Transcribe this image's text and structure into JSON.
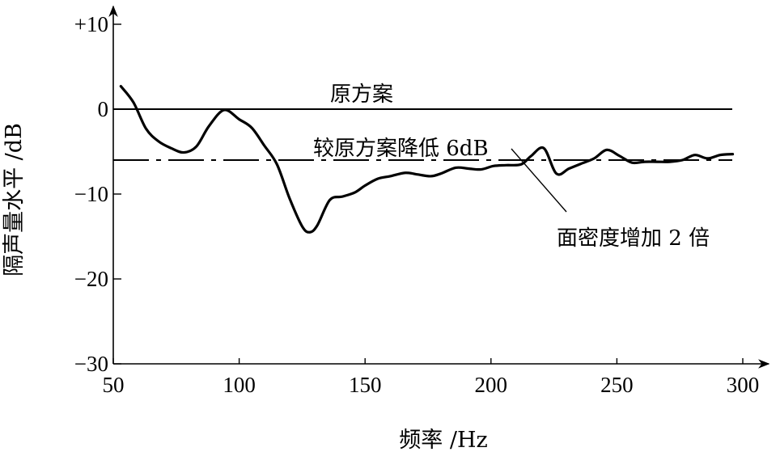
{
  "chart_data": {
    "type": "line",
    "xlabel": "频率 /Hz",
    "ylabel": "隔声量水平 /dB",
    "xlim": [
      50,
      300
    ],
    "ylim": [
      -30,
      10
    ],
    "x_ticks": [
      50,
      100,
      150,
      200,
      250,
      300
    ],
    "x_tick_labels": [
      "50",
      "100",
      "150",
      "200",
      "250",
      "300"
    ],
    "y_ticks": [
      10,
      0,
      -10,
      -20,
      -30
    ],
    "y_tick_labels": [
      "+10",
      "0",
      "−10",
      "−20",
      "−30"
    ],
    "grid": false,
    "legend": "none",
    "series": [
      {
        "name": "原方案",
        "style": "solid",
        "x": [
          50,
          300
        ],
        "values": [
          0,
          0
        ]
      },
      {
        "name": "较原方案降低 6dB",
        "style": "dash-dot",
        "x": [
          50,
          300
        ],
        "values": [
          -6,
          -6
        ]
      },
      {
        "name": "面密度增加 2 倍",
        "style": "solid-thick",
        "x": [
          53,
          58,
          63,
          68,
          73,
          78,
          83,
          88,
          94,
          100,
          105,
          110,
          115,
          120,
          125,
          128,
          131,
          136,
          141,
          146,
          150,
          155,
          160,
          166,
          171,
          176,
          180,
          186,
          191,
          196,
          201,
          206,
          212,
          216,
          221,
          226,
          231,
          236,
          241,
          246,
          251,
          256,
          261,
          266,
          271,
          276,
          281,
          286,
          291,
          296
        ],
        "values": [
          2.7,
          0.8,
          -2.3,
          -3.8,
          -4.6,
          -5.1,
          -4.4,
          -2.0,
          -0.1,
          -1.2,
          -2.2,
          -4.3,
          -6.5,
          -10.5,
          -13.8,
          -14.5,
          -13.7,
          -10.7,
          -10.3,
          -9.8,
          -9.0,
          -8.2,
          -7.9,
          -7.5,
          -7.7,
          -7.9,
          -7.6,
          -6.9,
          -7.0,
          -7.1,
          -6.7,
          -6.6,
          -6.5,
          -5.5,
          -4.6,
          -7.6,
          -7.0,
          -6.4,
          -5.8,
          -4.8,
          -5.5,
          -6.3,
          -6.2,
          -6.2,
          -6.2,
          -6.0,
          -5.4,
          -5.8,
          -5.4,
          -5.3
        ]
      }
    ],
    "annotations": [
      {
        "id": "baseline-label",
        "text": "原方案"
      },
      {
        "id": "minus6-label",
        "text": "较原方案降低 6dB"
      },
      {
        "id": "mass-label",
        "text": "面密度增加 2 倍"
      }
    ]
  }
}
